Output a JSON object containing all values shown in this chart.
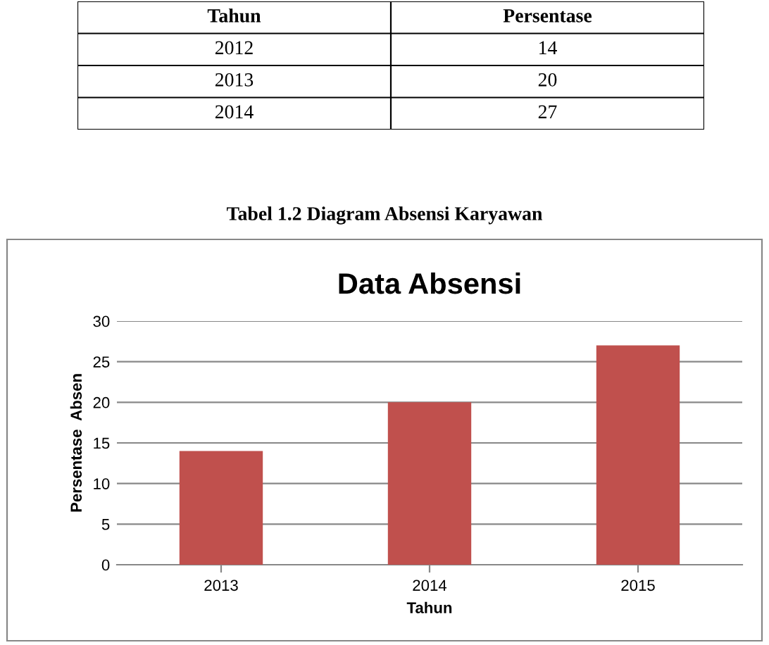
{
  "chart_data": [
    {
      "type": "other",
      "xlabel": "Tahun",
      "ylabel": "Persentase",
      "categories": [
        "2012",
        "2013",
        "2014"
      ],
      "values": [
        14,
        20,
        27
      ],
      "data_labels": true
    },
    {
      "type": "bar",
      "title": "Data Absensi",
      "xlabel": "Tahun",
      "ylabel": "Persentase  Absen",
      "categories": [
        "2013",
        "2014",
        "2015"
      ],
      "values": [
        14,
        20,
        27
      ],
      "color": "#c0504d",
      "ylim": [
        0,
        30
      ],
      "yticks": [
        0,
        5,
        10,
        15,
        20,
        25,
        30
      ],
      "grid": "y",
      "legend": false,
      "annotations": [
        "Tabel 1.2 Diagram Absensi Karyawan"
      ]
    }
  ]
}
